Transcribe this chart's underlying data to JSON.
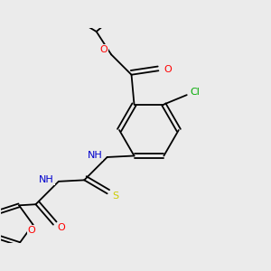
{
  "background_color": "#ebebeb",
  "bond_color": "#000000",
  "atom_colors": {
    "O": "#ff0000",
    "N": "#0000cd",
    "S": "#cccc00",
    "Cl": "#00aa00",
    "C": "#000000",
    "H": "#708090"
  },
  "figsize": [
    3.0,
    3.0
  ],
  "dpi": 100
}
